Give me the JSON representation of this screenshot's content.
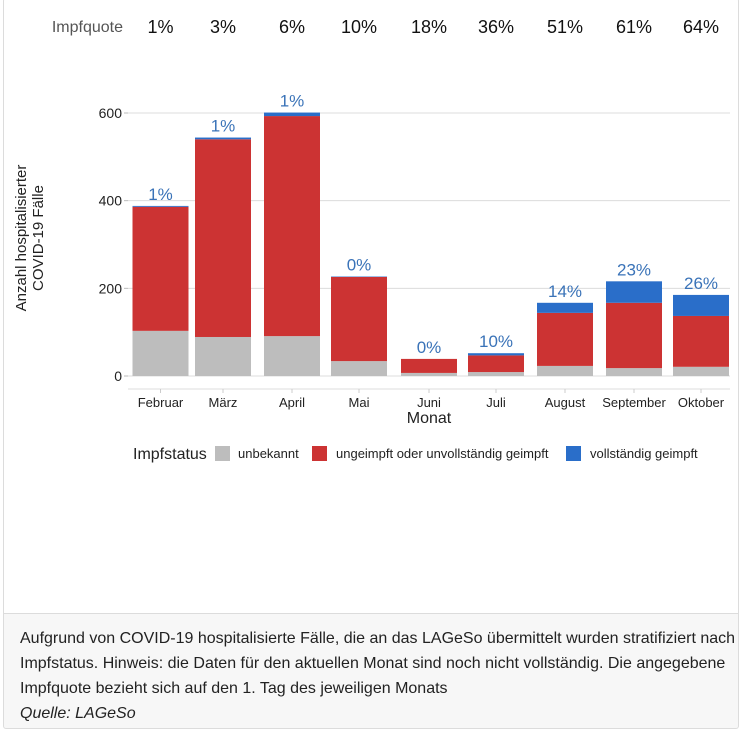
{
  "chart_data": {
    "type": "bar",
    "stacked": true,
    "title": "",
    "xlabel": "Monat",
    "ylabel": "Anzahl hospitalisierter COVID-19 Fälle",
    "ylabel_lines": [
      "Anzahl hospitalisierter",
      "COVID-19 Fälle"
    ],
    "ylim": [
      0,
      600
    ],
    "yticks": [
      0,
      200,
      400,
      600
    ],
    "grid": true,
    "categories": [
      "Februar",
      "März",
      "April",
      "Mai",
      "Juni",
      "Juli",
      "August",
      "September",
      "Oktober"
    ],
    "series": [
      {
        "name": "unbekannt",
        "color": "#bdbdbd",
        "values": [
          103,
          89,
          91,
          34,
          7,
          9,
          23,
          18,
          21
        ]
      },
      {
        "name": "ungeimpft oder unvollständig geimpft",
        "color": "#cc3333",
        "values": [
          283,
          451,
          502,
          192,
          32,
          38,
          121,
          149,
          116
        ]
      },
      {
        "name": "vollständig geimpft",
        "color": "#2a6ec9",
        "values": [
          2,
          4,
          8,
          1,
          0,
          5,
          23,
          49,
          48
        ]
      }
    ],
    "bar_labels": [
      "1%",
      "1%",
      "1%",
      "0%",
      "0%",
      "10%",
      "14%",
      "23%",
      "26%"
    ],
    "bar_label_color": "#3a73b8",
    "top_row": {
      "label": "Impfquote",
      "values": [
        "1%",
        "3%",
        "6%",
        "10%",
        "18%",
        "36%",
        "51%",
        "61%",
        "64%"
      ]
    },
    "legend": {
      "title": "Impfstatus",
      "placement": "bottom"
    }
  },
  "caption": {
    "text": "Aufgrund von COVID-19 hospitalisierte Fälle, die an das LAGeSo übermittelt wurden stratifiziert nach Impfstatus. Hinweis: die Daten für den aktuellen Monat sind noch nicht vollständig. Die angegebene Impfquote bezieht sich auf den 1. Tag des jeweiligen Monats",
    "source": "Quelle: LAGeSo"
  }
}
